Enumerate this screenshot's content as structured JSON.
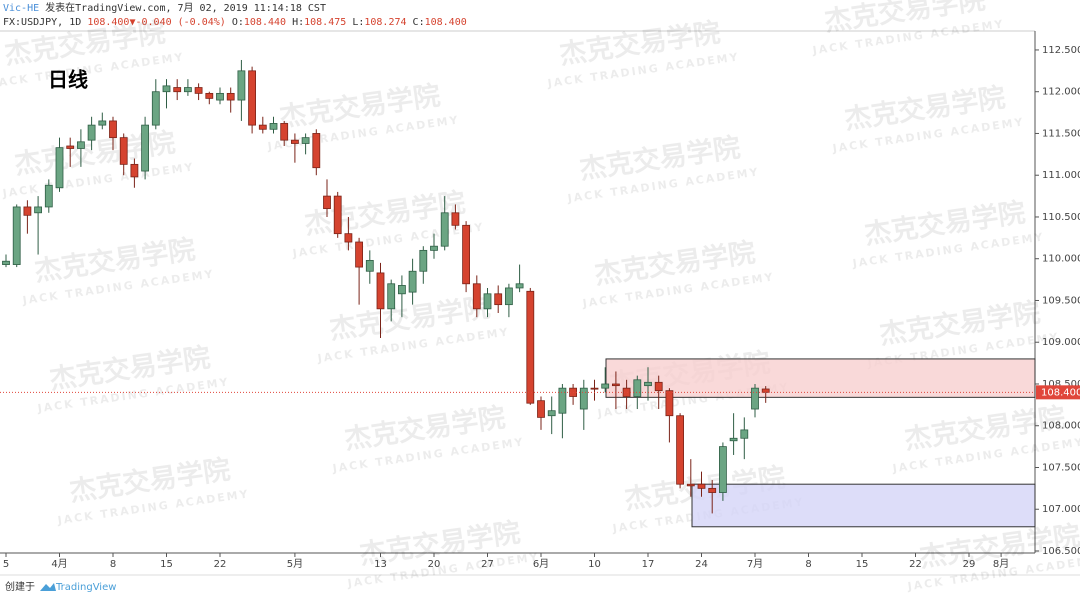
{
  "header": {
    "author": "Vic-HE",
    "published": "发表在TradingView.com, 7月 02, 2019 11:14:18 CST",
    "symbol": "FX:USDJPY, 1D",
    "price": "108.400",
    "change": "-0.040 (-0.04%)",
    "ohlc_labels": [
      "O:",
      "H:",
      "L:",
      "C:"
    ],
    "ohlc_values": [
      "108.440",
      "108.475",
      "108.274",
      "108.400"
    ]
  },
  "overlay_label": "日线",
  "watermark": {
    "cn": "杰克交易学院",
    "en": "JACK TRADING ACADEMY"
  },
  "footer": {
    "created": "创建于",
    "brand": "TradingView"
  },
  "chart_data": {
    "type": "candlestick",
    "up_color": "#6ba583",
    "down_color": "#d5432f",
    "categories": [
      "5",
      null,
      null,
      null,
      null,
      "4月",
      null,
      null,
      null,
      null,
      "8",
      null,
      null,
      null,
      null,
      "15",
      null,
      null,
      null,
      null,
      "22",
      null,
      null,
      null,
      null,
      null,
      null,
      "5月",
      null,
      null,
      null,
      null,
      null,
      null,
      null,
      "13",
      null,
      null,
      null,
      null,
      "20",
      null,
      null,
      null,
      null,
      "27",
      null,
      null,
      null,
      null,
      "6月",
      null,
      null,
      null,
      null,
      "10",
      null,
      null,
      null,
      null,
      "17",
      null,
      null,
      null,
      null,
      "24",
      null,
      null,
      null,
      null,
      "7月",
      null,
      null,
      null,
      null,
      "8",
      null,
      null,
      null,
      null,
      "15",
      null,
      null,
      null,
      null,
      "22",
      null,
      null,
      null,
      null,
      "29",
      null,
      null,
      "8月"
    ],
    "open": [
      109.93,
      109.93,
      110.62,
      110.55,
      110.62,
      110.85,
      111.35,
      111.32,
      111.42,
      111.6,
      111.65,
      111.45,
      111.13,
      111.05,
      111.6,
      112.0,
      112.05,
      112.0,
      112.05,
      111.98,
      111.9,
      111.98,
      111.9,
      112.25,
      111.6,
      111.55,
      111.62,
      111.42,
      111.38,
      111.5,
      110.75,
      110.75,
      110.3,
      110.2,
      109.85,
      109.83,
      109.4,
      109.58,
      109.6,
      109.85,
      110.1,
      110.15,
      110.55,
      110.4,
      109.7,
      109.4,
      109.58,
      109.45,
      109.65,
      109.61,
      108.3,
      108.12,
      108.15,
      108.45,
      108.2,
      108.45,
      108.45,
      108.5,
      108.45,
      108.35,
      108.48,
      108.52,
      108.42,
      108.12,
      107.3,
      107.3,
      107.25,
      107.2,
      107.82,
      107.85,
      108.2,
      108.44,
      null,
      null,
      null,
      null,
      null,
      null,
      null,
      null,
      null,
      null,
      null,
      null,
      null,
      null,
      null,
      null,
      null,
      null,
      null,
      null,
      null,
      null
    ],
    "high": [
      110.05,
      110.65,
      110.7,
      110.75,
      110.95,
      111.45,
      111.45,
      111.55,
      111.7,
      111.75,
      111.7,
      111.5,
      111.2,
      111.7,
      112.15,
      112.15,
      112.15,
      112.15,
      112.1,
      112.0,
      112.05,
      112.05,
      112.38,
      112.3,
      111.7,
      111.7,
      111.65,
      111.5,
      111.5,
      111.55,
      110.95,
      110.8,
      110.5,
      110.25,
      110.1,
      109.95,
      109.75,
      109.8,
      110.0,
      110.15,
      110.3,
      110.75,
      110.65,
      110.45,
      109.8,
      109.65,
      109.68,
      109.7,
      109.93,
      109.65,
      108.35,
      108.35,
      108.5,
      108.5,
      108.55,
      108.55,
      108.7,
      108.65,
      108.55,
      108.6,
      108.7,
      108.6,
      108.45,
      108.15,
      107.6,
      107.45,
      107.35,
      107.8,
      108.15,
      108.1,
      108.5,
      108.475,
      null,
      null,
      null,
      null,
      null,
      null,
      null,
      null,
      null,
      null,
      null,
      null,
      null,
      null,
      null,
      null,
      null,
      null,
      null,
      null,
      null,
      null
    ],
    "low": [
      109.9,
      109.9,
      110.3,
      110.05,
      110.55,
      110.8,
      111.1,
      111.1,
      111.3,
      111.55,
      111.3,
      111.0,
      110.85,
      110.95,
      111.55,
      111.8,
      111.9,
      111.95,
      111.9,
      111.85,
      111.85,
      111.75,
      111.65,
      111.5,
      111.5,
      111.5,
      111.35,
      111.15,
      111.25,
      111.0,
      110.5,
      110.25,
      110.1,
      109.45,
      109.7,
      109.05,
      109.25,
      109.3,
      109.45,
      109.7,
      110.0,
      110.1,
      110.35,
      109.6,
      109.3,
      109.3,
      109.35,
      109.3,
      109.6,
      108.25,
      107.95,
      107.9,
      107.85,
      108.25,
      107.95,
      108.3,
      108.4,
      108.2,
      108.2,
      108.2,
      108.3,
      108.2,
      107.8,
      107.25,
      107.15,
      107.15,
      106.95,
      107.1,
      107.65,
      107.6,
      108.1,
      108.274,
      null,
      null,
      null,
      null,
      null,
      null,
      null,
      null,
      null,
      null,
      null,
      null,
      null,
      null,
      null,
      null,
      null,
      null,
      null,
      null,
      null,
      null
    ],
    "close": [
      109.97,
      110.62,
      110.52,
      110.62,
      110.88,
      111.33,
      111.32,
      111.4,
      111.6,
      111.65,
      111.45,
      111.13,
      110.98,
      111.6,
      112.0,
      112.07,
      112.0,
      112.05,
      111.98,
      111.92,
      111.98,
      111.9,
      112.25,
      111.6,
      111.55,
      111.62,
      111.42,
      111.38,
      111.45,
      111.09,
      110.6,
      110.3,
      110.2,
      109.9,
      109.98,
      109.4,
      109.7,
      109.68,
      109.85,
      110.1,
      110.15,
      110.55,
      110.4,
      109.7,
      109.4,
      109.58,
      109.45,
      109.65,
      109.7,
      108.27,
      108.1,
      108.18,
      108.45,
      108.35,
      108.45,
      108.44,
      108.5,
      108.48,
      108.35,
      108.55,
      108.52,
      108.42,
      108.12,
      107.3,
      107.28,
      107.25,
      107.2,
      107.75,
      107.85,
      107.95,
      108.45,
      108.4,
      null,
      null,
      null,
      null,
      null,
      null,
      null,
      null,
      null,
      null,
      null,
      null,
      null,
      null,
      null,
      null,
      null,
      null,
      null,
      null,
      null,
      null
    ],
    "ylim": [
      106.476,
      112.727
    ],
    "yticks": [
      {
        "value": 106.5,
        "label": "106.500"
      },
      {
        "value": 107,
        "label": "107.000"
      },
      {
        "value": 107.5,
        "label": "107.500"
      },
      {
        "value": 108,
        "label": "108.000"
      },
      {
        "value": 108.5,
        "label": "108.500"
      },
      {
        "value": 109,
        "label": "109.000"
      },
      {
        "value": 109.5,
        "label": "109.500"
      },
      {
        "value": 110,
        "label": "110.000"
      },
      {
        "value": 110.5,
        "label": "110.500"
      },
      {
        "value": 111,
        "label": "111.000"
      },
      {
        "value": 111.5,
        "label": "111.500"
      },
      {
        "value": 112,
        "label": "112.000"
      },
      {
        "value": 112.5,
        "label": "112.500"
      }
    ],
    "last_price": {
      "value": 108.4,
      "label": "108.400",
      "color": "#e0463a"
    },
    "zones": [
      {
        "top": 108.8,
        "bottom": 108.34,
        "color": "#f8d0d0"
      },
      {
        "top": 107.3,
        "bottom": 106.79,
        "color": "#d4d4f8"
      }
    ]
  }
}
